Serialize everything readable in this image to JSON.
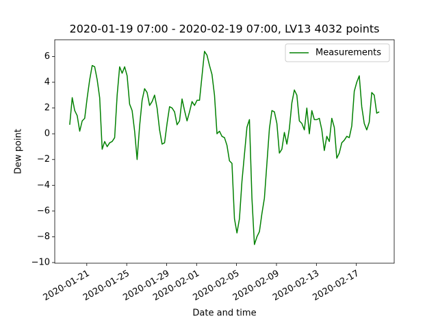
{
  "chart_data": {
    "type": "line",
    "title": "2020-01-19 07:00 - 2020-02-19 07:00, LV13 4032 points",
    "x_label": "Date and time",
    "y_label": "Dew point",
    "legend": "upper right",
    "grid": false,
    "x": [
      "2020-01-19 07:00",
      "2020-01-19 13:00",
      "2020-01-19 19:00",
      "2020-01-20 01:00",
      "2020-01-20 07:00",
      "2020-01-20 13:00",
      "2020-01-20 19:00",
      "2020-01-21 01:00",
      "2020-01-21 07:00",
      "2020-01-21 13:00",
      "2020-01-21 19:00",
      "2020-01-22 01:00",
      "2020-01-22 07:00",
      "2020-01-22 13:00",
      "2020-01-22 19:00",
      "2020-01-23 01:00",
      "2020-01-23 07:00",
      "2020-01-23 13:00",
      "2020-01-23 19:00",
      "2020-01-24 01:00",
      "2020-01-24 07:00",
      "2020-01-24 13:00",
      "2020-01-24 19:00",
      "2020-01-25 01:00",
      "2020-01-25 07:00",
      "2020-01-25 13:00",
      "2020-01-25 19:00",
      "2020-01-26 01:00",
      "2020-01-26 07:00",
      "2020-01-26 13:00",
      "2020-01-26 19:00",
      "2020-01-27 01:00",
      "2020-01-27 07:00",
      "2020-01-27 13:00",
      "2020-01-27 19:00",
      "2020-01-28 01:00",
      "2020-01-28 07:00",
      "2020-01-28 13:00",
      "2020-01-28 19:00",
      "2020-01-29 01:00",
      "2020-01-29 07:00",
      "2020-01-29 13:00",
      "2020-01-29 19:00",
      "2020-01-30 01:00",
      "2020-01-30 07:00",
      "2020-01-30 13:00",
      "2020-01-30 19:00",
      "2020-01-31 01:00",
      "2020-01-31 07:00",
      "2020-01-31 13:00",
      "2020-01-31 19:00",
      "2020-02-01 01:00",
      "2020-02-01 07:00",
      "2020-02-01 13:00",
      "2020-02-01 19:00",
      "2020-02-02 01:00",
      "2020-02-02 07:00",
      "2020-02-02 13:00",
      "2020-02-02 19:00",
      "2020-02-03 01:00",
      "2020-02-03 07:00",
      "2020-02-03 13:00",
      "2020-02-03 19:00",
      "2020-02-04 01:00",
      "2020-02-04 07:00",
      "2020-02-04 13:00",
      "2020-02-04 19:00",
      "2020-02-05 01:00",
      "2020-02-05 07:00",
      "2020-02-05 13:00",
      "2020-02-05 19:00",
      "2020-02-06 01:00",
      "2020-02-06 07:00",
      "2020-02-06 13:00",
      "2020-02-06 19:00",
      "2020-02-07 01:00",
      "2020-02-07 07:00",
      "2020-02-07 13:00",
      "2020-02-07 19:00",
      "2020-02-08 01:00",
      "2020-02-08 07:00",
      "2020-02-08 13:00",
      "2020-02-08 19:00",
      "2020-02-09 01:00",
      "2020-02-09 07:00",
      "2020-02-09 13:00",
      "2020-02-09 19:00",
      "2020-02-10 01:00",
      "2020-02-10 07:00",
      "2020-02-10 13:00",
      "2020-02-10 19:00",
      "2020-02-11 01:00",
      "2020-02-11 07:00",
      "2020-02-11 13:00",
      "2020-02-11 19:00",
      "2020-02-12 01:00",
      "2020-02-12 07:00",
      "2020-02-12 13:00",
      "2020-02-12 19:00",
      "2020-02-13 01:00",
      "2020-02-13 07:00",
      "2020-02-13 13:00",
      "2020-02-13 19:00",
      "2020-02-14 01:00",
      "2020-02-14 07:00",
      "2020-02-14 13:00",
      "2020-02-14 19:00",
      "2020-02-15 01:00",
      "2020-02-15 07:00",
      "2020-02-15 13:00",
      "2020-02-15 19:00",
      "2020-02-16 01:00",
      "2020-02-16 07:00",
      "2020-02-16 13:00",
      "2020-02-16 19:00",
      "2020-02-17 01:00",
      "2020-02-17 07:00",
      "2020-02-17 13:00",
      "2020-02-17 19:00",
      "2020-02-18 01:00",
      "2020-02-18 07:00",
      "2020-02-18 13:00",
      "2020-02-18 19:00",
      "2020-02-19 01:00",
      "2020-02-19 07:00"
    ],
    "series": [
      {
        "name": "Measurements",
        "color": "#008000",
        "values": [
          0.7,
          2.8,
          1.8,
          1.4,
          0.2,
          1.0,
          1.2,
          2.8,
          4.2,
          5.3,
          5.2,
          4.2,
          2.8,
          -1.2,
          -0.6,
          -1.0,
          -0.7,
          -0.6,
          -0.3,
          3.0,
          5.2,
          4.7,
          5.2,
          4.5,
          2.3,
          1.8,
          0.2,
          -2.0,
          0.6,
          2.6,
          3.5,
          3.2,
          2.2,
          2.5,
          3.0,
          2.0,
          0.3,
          -0.8,
          -0.7,
          0.8,
          2.1,
          2.0,
          1.7,
          0.7,
          1.0,
          2.7,
          1.8,
          1.0,
          1.7,
          2.5,
          2.2,
          2.6,
          2.6,
          4.5,
          6.4,
          6.1,
          5.3,
          4.6,
          3.0,
          0.0,
          0.2,
          -0.2,
          -0.3,
          -0.9,
          -2.1,
          -2.3,
          -6.6,
          -7.7,
          -6.6,
          -3.7,
          -1.6,
          0.5,
          1.1,
          -5.0,
          -8.6,
          -8.0,
          -7.6,
          -6.2,
          -5.0,
          -2.3,
          0.4,
          1.8,
          1.7,
          0.8,
          -1.5,
          -1.2,
          0.1,
          -0.8,
          0.4,
          2.4,
          3.4,
          3.0,
          1.0,
          0.8,
          0.3,
          2.0,
          0.0,
          1.8,
          1.1,
          1.1,
          1.2,
          0.3,
          -1.3,
          -0.2,
          -0.6,
          1.2,
          0.5,
          -1.9,
          -1.5,
          -0.7,
          -0.5,
          -0.2,
          -0.3,
          0.6,
          3.3,
          4.0,
          4.5,
          2.1,
          0.8,
          0.3,
          0.9,
          3.2,
          3.0,
          1.6,
          1.7
        ]
      }
    ],
    "xlim": [
      "2020-01-17 19:00",
      "2020-02-20 19:00"
    ],
    "xticks": [
      "2020-01-21",
      "2020-01-25",
      "2020-01-29",
      "2020-02-01",
      "2020-02-05",
      "2020-02-09",
      "2020-02-13",
      "2020-02-17"
    ],
    "ylim": [
      -10.05,
      7.3
    ],
    "yticks": [
      {
        "value": -10,
        "label": "−10"
      },
      {
        "value": -8,
        "label": "−8"
      },
      {
        "value": -6,
        "label": "−6"
      },
      {
        "value": -4,
        "label": "−4"
      },
      {
        "value": -2,
        "label": "−2"
      },
      0,
      2,
      4,
      6
    ]
  }
}
